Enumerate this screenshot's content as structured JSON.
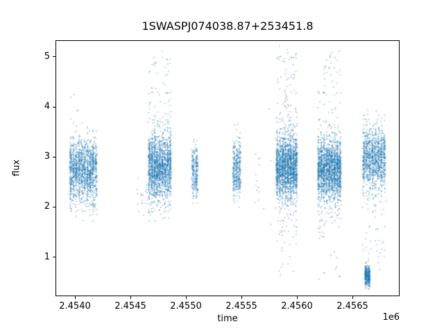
{
  "chart_data": {
    "type": "scatter",
    "title": "1SWASPJ074038.87+253451.8",
    "xlabel": "time",
    "ylabel": "flux",
    "x_offset_label": "1e6",
    "xlim": [
      2453825,
      2456925
    ],
    "ylim": [
      0.2175,
      5.3325
    ],
    "xticks": [
      2454000,
      2454500,
      2455000,
      2455500,
      2456000,
      2456500
    ],
    "xtick_labels": [
      "2.4540",
      "2.4545",
      "2.4550",
      "2.4555",
      "2.4560",
      "2.4565"
    ],
    "yticks": [
      1,
      2,
      3,
      4,
      5
    ],
    "ytick_labels": [
      "1",
      "2",
      "3",
      "4",
      "5"
    ],
    "marker_color": "#1f77b4",
    "marker_alpha": 0.5,
    "grid": false,
    "legend": "none",
    "clusters": [
      {
        "t_min": 2453950,
        "t_max": 2454200,
        "columns": 10,
        "bands": [
          {
            "n": 1400,
            "f_mean": 2.75,
            "f_sd": 0.3
          },
          {
            "n": 30,
            "f_mean": 2.0,
            "f_sd": 0.15
          },
          {
            "n": 6,
            "f_mean": 3.75,
            "f_sd": 0.15
          },
          {
            "n": 2,
            "f_mean": 4.2,
            "f_sd": 0.05
          }
        ]
      },
      {
        "t_min": 2454550,
        "t_max": 2454660,
        "columns": 3,
        "bands": [
          {
            "n": 20,
            "f_mean": 2.25,
            "f_sd": 0.2
          }
        ]
      },
      {
        "t_min": 2454660,
        "t_max": 2454870,
        "columns": 9,
        "bands": [
          {
            "n": 1600,
            "f_mean": 2.8,
            "f_sd": 0.33
          },
          {
            "n": 60,
            "f_mean": 4.0,
            "f_sd": 0.45
          },
          {
            "n": 10,
            "f_mean": 4.9,
            "f_sd": 0.12
          },
          {
            "n": 20,
            "f_mean": 1.95,
            "f_sd": 0.1
          }
        ]
      },
      {
        "t_min": 2455050,
        "t_max": 2455110,
        "columns": 2,
        "bands": [
          {
            "n": 260,
            "f_mean": 2.7,
            "f_sd": 0.25
          }
        ]
      },
      {
        "t_min": 2455420,
        "t_max": 2455495,
        "columns": 3,
        "bands": [
          {
            "n": 380,
            "f_mean": 2.75,
            "f_sd": 0.27
          },
          {
            "n": 4,
            "f_mean": 3.55,
            "f_sd": 0.1
          }
        ]
      },
      {
        "t_min": 2455620,
        "t_max": 2455670,
        "columns": 2,
        "bands": [
          {
            "n": 12,
            "f_mean": 2.6,
            "f_sd": 0.25
          }
        ]
      },
      {
        "t_min": 2455700,
        "t_max": 2455780,
        "columns": 2,
        "bands": [
          {
            "n": 4,
            "f_mean": 2.2,
            "f_sd": 0.8
          }
        ]
      },
      {
        "t_min": 2455810,
        "t_max": 2456005,
        "columns": 8,
        "bands": [
          {
            "n": 1800,
            "f_mean": 2.8,
            "f_sd": 0.32
          },
          {
            "n": 70,
            "f_mean": 4.1,
            "f_sd": 0.5
          },
          {
            "n": 12,
            "f_mean": 4.95,
            "f_sd": 0.1
          },
          {
            "n": 40,
            "f_mean": 1.6,
            "f_sd": 0.35
          },
          {
            "n": 8,
            "f_mean": 0.85,
            "f_sd": 0.12
          }
        ]
      },
      {
        "t_min": 2456185,
        "t_max": 2456400,
        "columns": 9,
        "bands": [
          {
            "n": 1800,
            "f_mean": 2.75,
            "f_sd": 0.3
          },
          {
            "n": 60,
            "f_mean": 4.0,
            "f_sd": 0.5
          },
          {
            "n": 10,
            "f_mean": 4.9,
            "f_sd": 0.12
          },
          {
            "n": 40,
            "f_mean": 1.7,
            "f_sd": 0.35
          },
          {
            "n": 6,
            "f_mean": 0.7,
            "f_sd": 0.1
          }
        ]
      },
      {
        "t_min": 2456590,
        "t_max": 2456800,
        "columns": 8,
        "bands": [
          {
            "n": 1100,
            "f_mean": 3.0,
            "f_sd": 0.3
          },
          {
            "n": 40,
            "f_mean": 2.2,
            "f_sd": 0.25
          },
          {
            "n": 6,
            "f_mean": 3.85,
            "f_sd": 0.1
          },
          {
            "n": 30,
            "f_mean": 1.4,
            "f_sd": 0.3
          }
        ]
      },
      {
        "t_min": 2456610,
        "t_max": 2456660,
        "columns": 2,
        "bands": [
          {
            "n": 350,
            "f_mean": 0.62,
            "f_sd": 0.1
          }
        ]
      }
    ]
  }
}
